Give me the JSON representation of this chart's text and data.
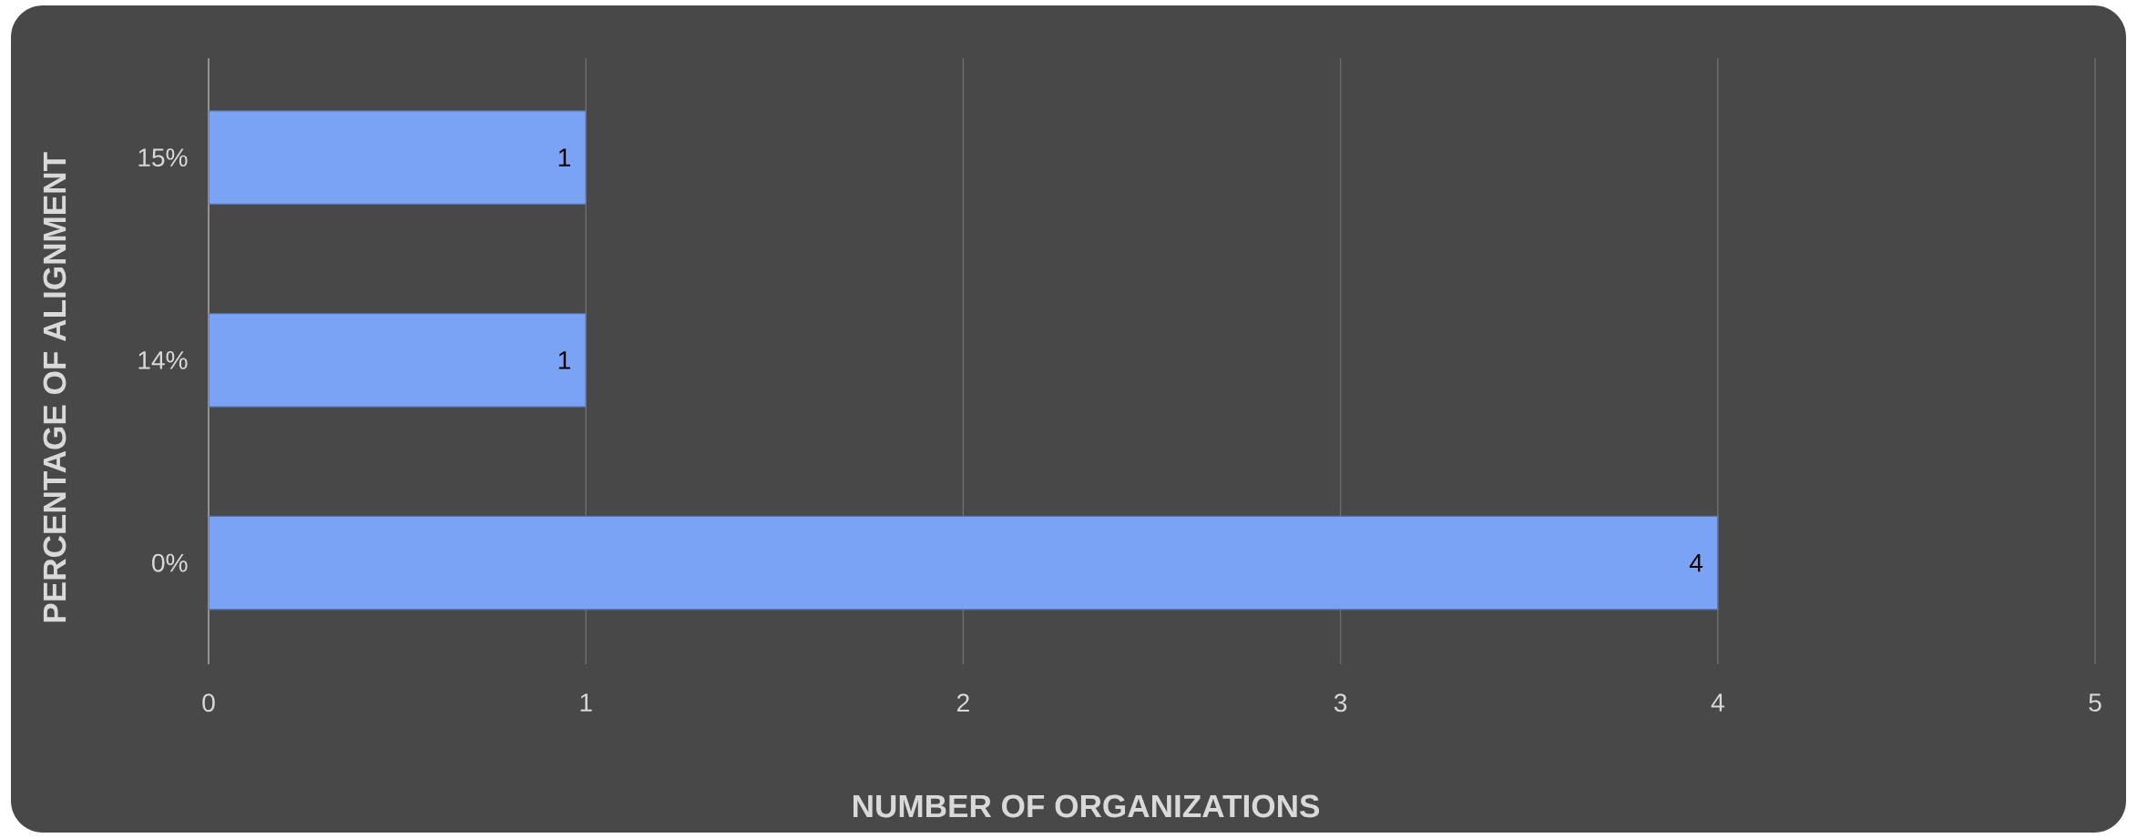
{
  "chart_data": {
    "type": "bar",
    "orientation": "horizontal",
    "xlabel": "NUMBER OF ORGANIZATIONS",
    "ylabel": "PERCENTAGE OF ALIGNMENT",
    "categories": [
      "15%",
      "14%",
      "0%"
    ],
    "values": [
      1,
      1,
      4
    ],
    "color": "#7ba3f5",
    "xlim": [
      0,
      5
    ],
    "xticks": [
      0,
      1,
      2,
      3,
      4,
      5
    ],
    "grid": "x",
    "data_labels": true
  }
}
